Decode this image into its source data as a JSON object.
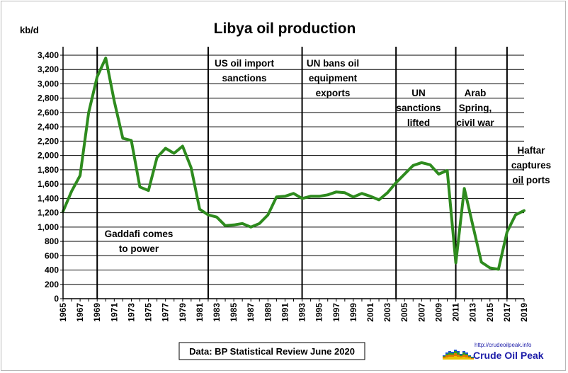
{
  "chart_data": {
    "type": "line",
    "title": "Libya oil production",
    "ylabel": "kb/d",
    "ylim": [
      0,
      3400
    ],
    "y_ticks": [
      0,
      200,
      400,
      600,
      800,
      1000,
      1200,
      1400,
      1600,
      1800,
      2000,
      2200,
      2400,
      2600,
      2800,
      3000,
      3200,
      3400
    ],
    "y_tick_labels": [
      "0",
      "200",
      "400",
      "600",
      "800",
      "1,000",
      "1,200",
      "1,400",
      "1,600",
      "1,800",
      "2,000",
      "2,200",
      "2,400",
      "2,600",
      "2,800",
      "3,000",
      "3,200",
      "3,400"
    ],
    "x_tick_labels": [
      "1965",
      "1967",
      "1969",
      "1971",
      "1973",
      "1975",
      "1977",
      "1979",
      "1981",
      "1983",
      "1985",
      "1987",
      "1989",
      "1991",
      "1993",
      "1995",
      "1997",
      "1999",
      "2001",
      "2003",
      "2005",
      "2007",
      "2009",
      "2011",
      "2013",
      "2015",
      "2017",
      "2019"
    ],
    "grid": true,
    "line_color": "#2e8b1e",
    "x": [
      1965,
      1966,
      1967,
      1968,
      1969,
      1970,
      1971,
      1972,
      1973,
      1974,
      1975,
      1976,
      1977,
      1978,
      1979,
      1980,
      1981,
      1982,
      1983,
      1984,
      1985,
      1986,
      1987,
      1988,
      1989,
      1990,
      1991,
      1992,
      1993,
      1994,
      1995,
      1996,
      1997,
      1998,
      1999,
      2000,
      2001,
      2002,
      2003,
      2004,
      2005,
      2006,
      2007,
      2008,
      2009,
      2010,
      2011,
      2012,
      2013,
      2014,
      2015,
      2016,
      2017,
      2018,
      2019
    ],
    "values": [
      1220,
      1500,
      1720,
      2600,
      3100,
      3360,
      2760,
      2240,
      2210,
      1560,
      1510,
      1970,
      2100,
      2030,
      2130,
      1830,
      1250,
      1170,
      1140,
      1020,
      1030,
      1050,
      1000,
      1050,
      1170,
      1420,
      1430,
      1470,
      1400,
      1430,
      1430,
      1450,
      1490,
      1480,
      1420,
      1470,
      1430,
      1380,
      1480,
      1620,
      1740,
      1860,
      1900,
      1870,
      1740,
      1790,
      500,
      1540,
      1020,
      510,
      430,
      410,
      930,
      1170,
      1230
    ],
    "events": [
      {
        "year": 1969,
        "lines": [
          "Gaddafi comes",
          "to power"
        ]
      },
      {
        "year": 1982,
        "lines": [
          "US oil import",
          "sanctions"
        ]
      },
      {
        "year": 1993,
        "lines": [
          "UN bans oil",
          "equipment",
          "exports"
        ]
      },
      {
        "year": 2004,
        "lines": [
          "UN",
          "sanctions",
          "lifted"
        ]
      },
      {
        "year": 2011,
        "lines": [
          "Arab",
          "Spring,",
          "civil war"
        ]
      },
      {
        "year": 2017,
        "lines": [
          "Haftar",
          "captures",
          "oil ports"
        ]
      }
    ],
    "source": "Data: BP Statistical Review June 2020"
  },
  "branding": {
    "url": "http://crudeoilpeak.info",
    "name": "Crude Oil Peak",
    "logo_colors": [
      "#e8c400",
      "#e07800",
      "#2b9a2b",
      "#1c4fd8"
    ]
  }
}
